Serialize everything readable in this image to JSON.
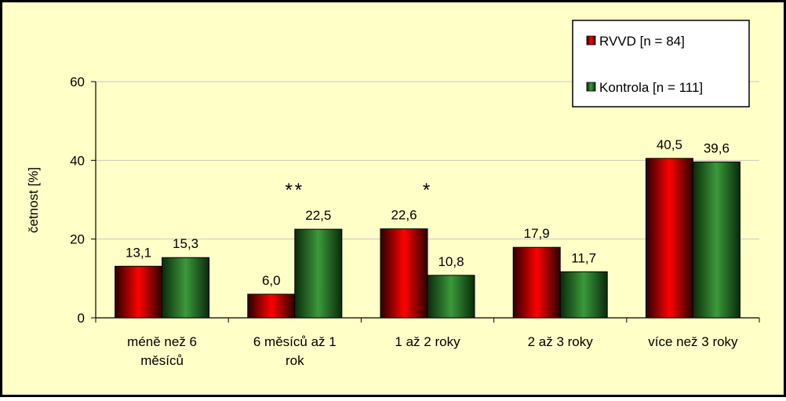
{
  "chart_data": {
    "type": "bar",
    "title": "",
    "xlabel": "",
    "ylabel": "četnost [%]",
    "ylim": [
      0,
      60
    ],
    "yticks": [
      0,
      20,
      40,
      60
    ],
    "grid": true,
    "legend_position": "top-right",
    "categories": [
      [
        "méně než 6",
        "měsíců"
      ],
      [
        "6 měsíců až 1",
        "rok"
      ],
      [
        "1 až 2 roky"
      ],
      [
        "2 až 3 roky"
      ],
      [
        "více než 3 roky"
      ]
    ],
    "series": [
      {
        "name": "RVVD [n = 84]",
        "color": "#cc0000",
        "values": [
          13.1,
          6.0,
          22.6,
          17.9,
          40.5
        ],
        "labels": [
          "13,1",
          "6,0",
          "22,6",
          "17,9",
          "40,5"
        ]
      },
      {
        "name": "Kontrola [n = 111]",
        "color": "#2e8b2e",
        "values": [
          15.3,
          22.5,
          10.8,
          11.7,
          39.6
        ],
        "labels": [
          "15,3",
          "22,5",
          "10,8",
          "11,7",
          "39,6"
        ]
      }
    ],
    "annotations": [
      {
        "category_index": 1,
        "text": "**"
      },
      {
        "category_index": 2,
        "text": "*"
      }
    ]
  },
  "colors": {
    "background": "#ffffc8",
    "border": "#000000",
    "gridline": "#c8c8c8"
  }
}
